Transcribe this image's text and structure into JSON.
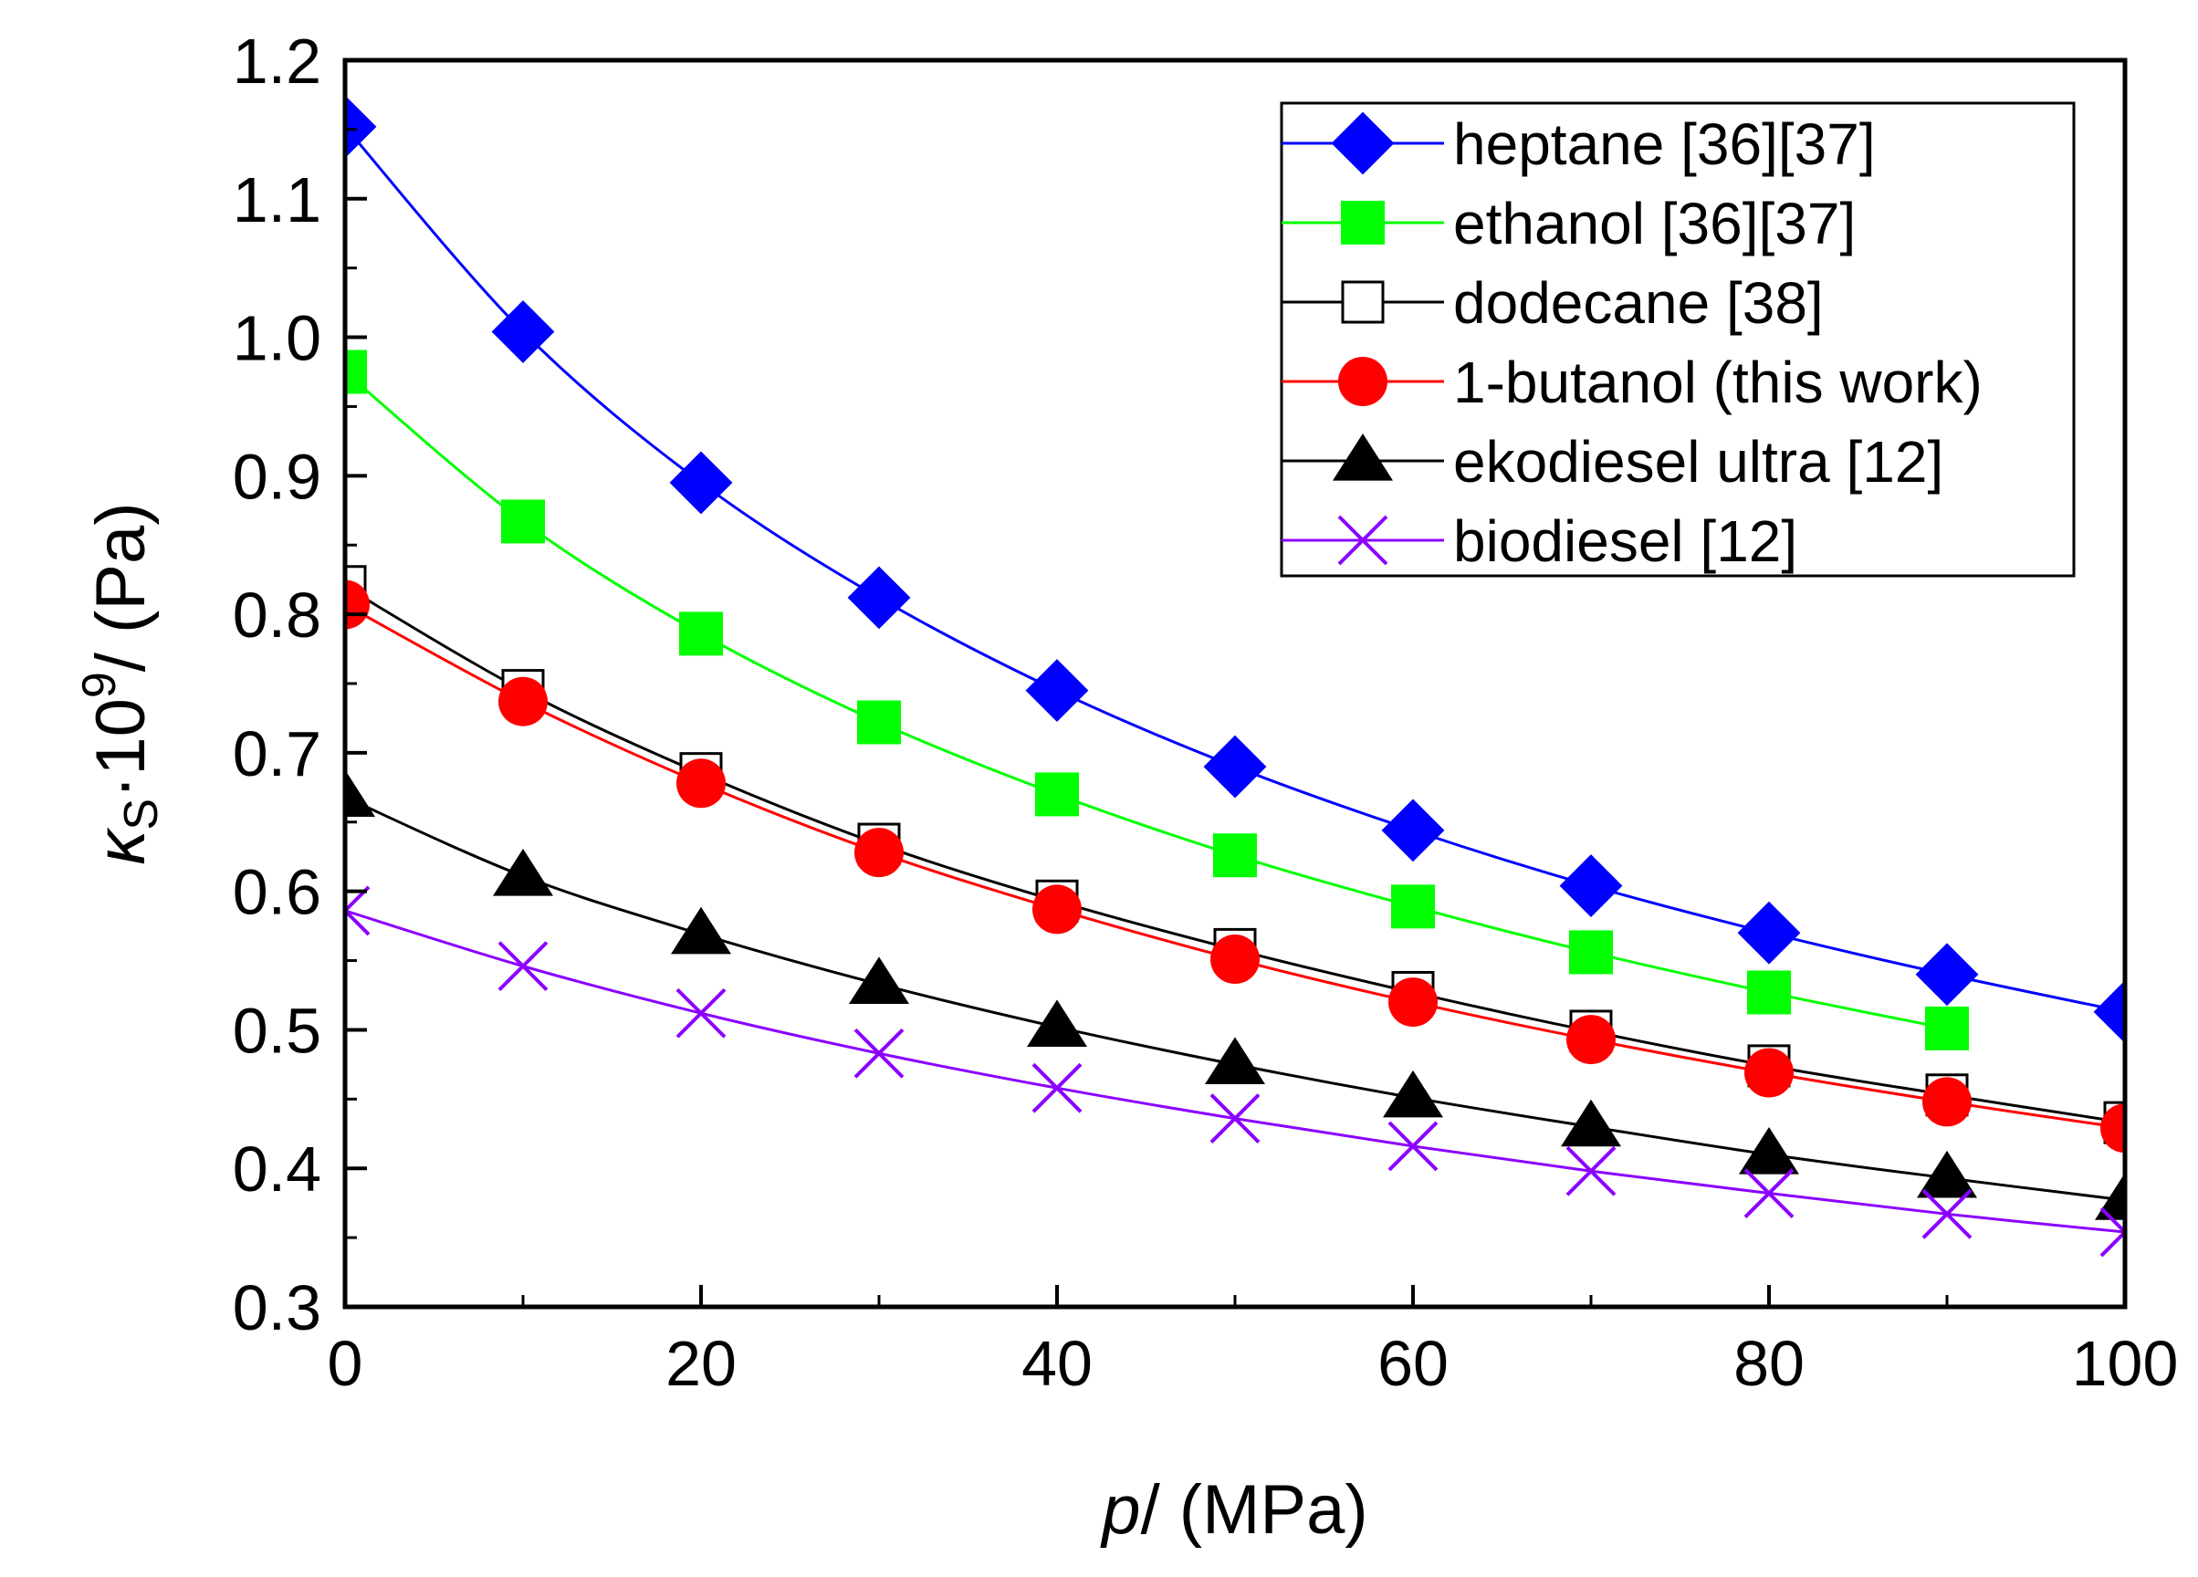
{
  "chart_data": {
    "type": "line",
    "xlabel": {
      "var": "p",
      "unit": "/ (MPa)"
    },
    "ylabel": {
      "var": "κ",
      "sub": "S",
      "mid": "·10",
      "sup": "9",
      "unit": "/ (Pa)"
    },
    "xlim": [
      0,
      100
    ],
    "ylim": [
      0.3,
      1.2
    ],
    "xticks": [
      0,
      20,
      40,
      60,
      80,
      100
    ],
    "yticks": [
      0.3,
      0.4,
      0.5,
      0.6,
      0.7,
      0.8,
      0.9,
      1.0,
      1.1,
      1.2
    ],
    "ytick_labels": [
      "0.3",
      "0.4",
      "0.5",
      "0.6",
      "0.7",
      "0.8",
      "0.9",
      "1.0",
      "1.1",
      "1.2"
    ],
    "grid": false,
    "legend_position": "top-right",
    "series": [
      {
        "name": "heptane [36][37]",
        "color": "#0000ff",
        "line_color": "#0000ff",
        "marker": "diamond",
        "x": [
          0,
          10,
          20,
          30,
          40,
          50,
          60,
          70,
          80,
          90,
          100
        ],
        "y": [
          1.152,
          1.004,
          0.895,
          0.812,
          0.745,
          0.69,
          0.644,
          0.604,
          0.57,
          0.54,
          0.513
        ]
      },
      {
        "name": "ethanol [36][37]",
        "color": "#00ff00",
        "line_color": "#00ff00",
        "marker": "square",
        "x": [
          0,
          10,
          20,
          30,
          40,
          50,
          60,
          70,
          80,
          90
        ],
        "y": [
          0.975,
          0.867,
          0.786,
          0.722,
          0.67,
          0.626,
          0.589,
          0.556,
          0.527,
          0.501
        ]
      },
      {
        "name": "dodecane [38]",
        "color": "#000000",
        "line_color": "#000000",
        "marker": "open-square",
        "x": [
          0,
          10,
          20,
          30,
          40,
          50,
          60,
          70,
          80,
          90,
          100
        ],
        "y": [
          0.82,
          0.745,
          0.685,
          0.634,
          0.593,
          0.558,
          0.527,
          0.499,
          0.474,
          0.453,
          0.433
        ]
      },
      {
        "name": "1-butanol (this work)",
        "color": "#ff0000",
        "line_color": "#ff0000",
        "marker": "circle",
        "x": [
          0,
          10,
          20,
          30,
          40,
          50,
          60,
          70,
          80,
          90,
          100
        ],
        "y": [
          0.807,
          0.737,
          0.678,
          0.628,
          0.587,
          0.551,
          0.52,
          0.493,
          0.469,
          0.448,
          0.429
        ]
      },
      {
        "name": "ekodiesel ultra [12]",
        "color": "#000000",
        "line_color": "#000000",
        "marker": "triangle",
        "x": [
          0,
          10,
          20,
          30,
          40,
          50,
          60,
          70,
          80,
          90,
          100
        ],
        "y": [
          0.668,
          0.611,
          0.569,
          0.533,
          0.502,
          0.475,
          0.451,
          0.43,
          0.41,
          0.393,
          0.377
        ]
      },
      {
        "name": "biodiesel [12]",
        "color": "#8b00ff",
        "line_color": "#8b00ff",
        "marker": "cross",
        "x": [
          0,
          10,
          20,
          30,
          40,
          50,
          60,
          70,
          80,
          90,
          100
        ],
        "y": [
          0.586,
          0.546,
          0.512,
          0.483,
          0.458,
          0.436,
          0.416,
          0.398,
          0.382,
          0.367,
          0.354
        ]
      }
    ]
  }
}
